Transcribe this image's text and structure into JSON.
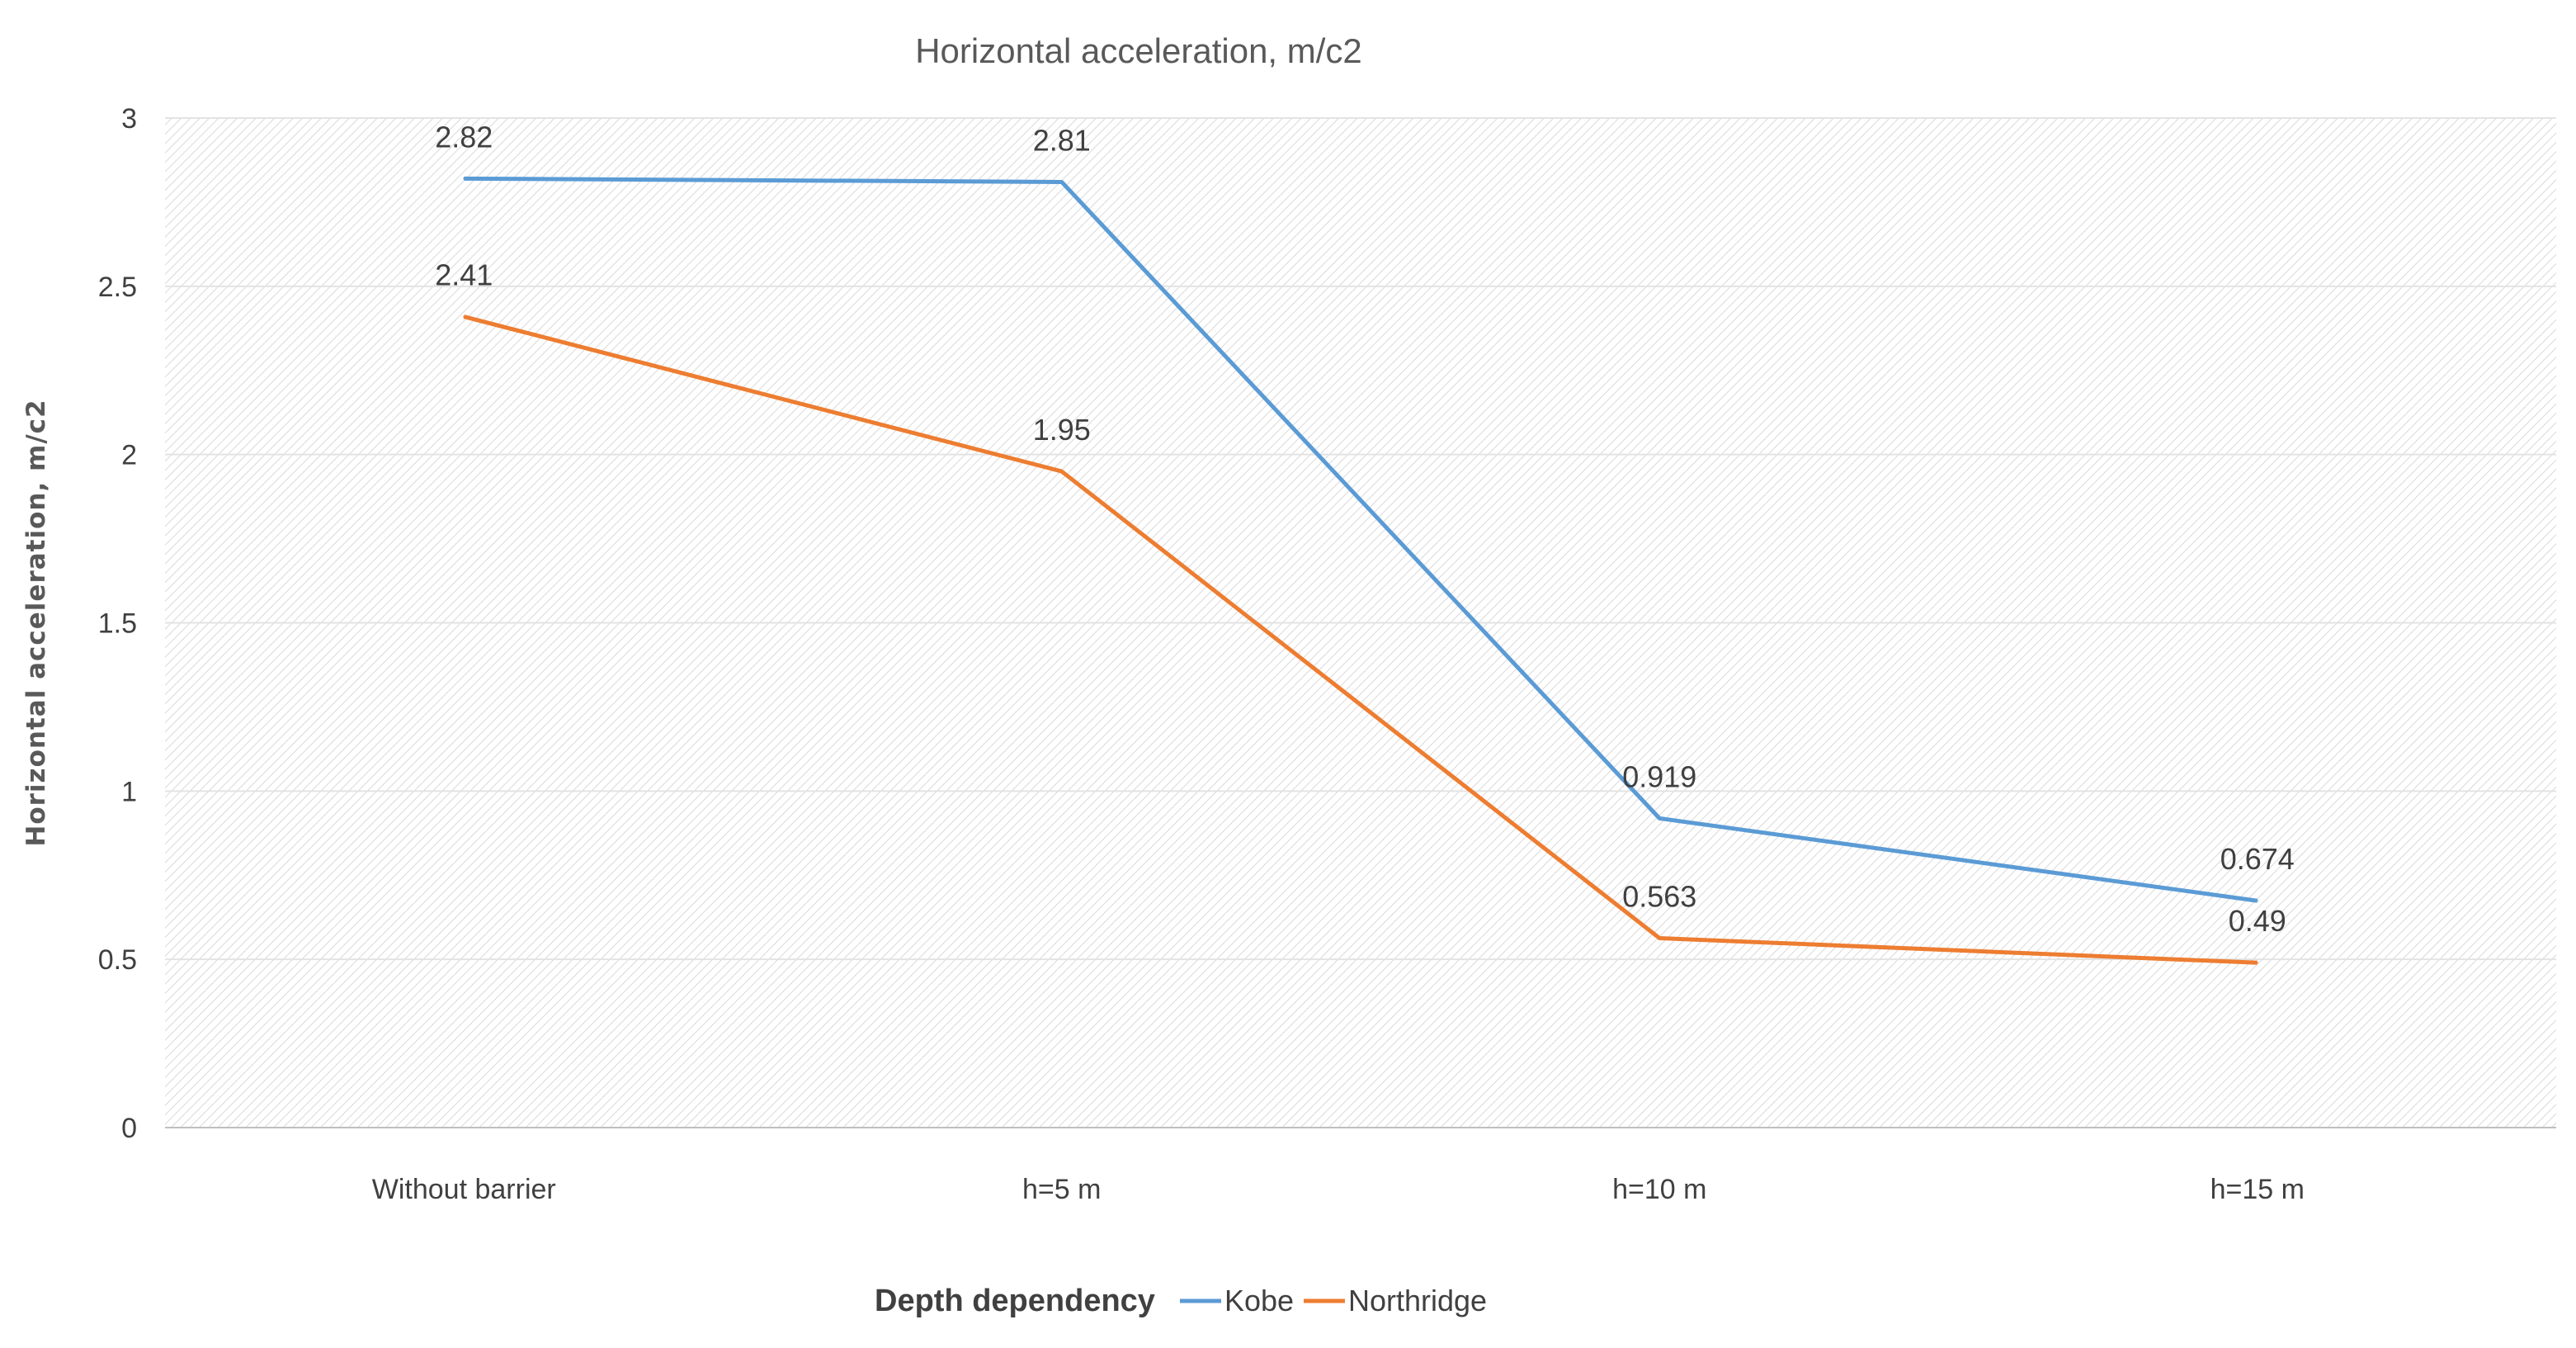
{
  "chart_data": {
    "type": "line",
    "title": "Horizontal acceleration, m/c2",
    "xlabel": "",
    "ylabel": "Horizontal acceleration, m/c2",
    "categories": [
      "Without barrier",
      "h=5 m",
      "h=10 m",
      "h=15 m"
    ],
    "ylim": [
      0,
      3
    ],
    "yticks": [
      "0",
      "0.5",
      "1",
      "1.5",
      "2",
      "2.5",
      "3"
    ],
    "grid": true,
    "legend_placement": "bottom",
    "legend_title": "Depth dependency",
    "series": [
      {
        "name": "Kobe",
        "color": "#5B9BD5",
        "values": [
          2.82,
          2.81,
          0.919,
          0.674
        ],
        "labels": [
          "2.82",
          "2.81",
          "0.919",
          "0.674"
        ]
      },
      {
        "name": "Northridge",
        "color": "#ED7D31",
        "values": [
          2.41,
          1.95,
          0.563,
          0.49
        ],
        "labels": [
          "2.41",
          "1.95",
          "0.563",
          "0.49"
        ]
      }
    ]
  }
}
